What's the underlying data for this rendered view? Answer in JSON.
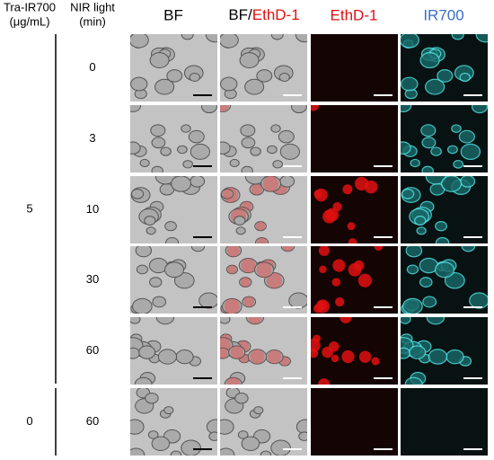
{
  "header": {
    "dose_title": "Tra-IR700",
    "dose_unit": "(μg/mL)",
    "time_title": "NIR light",
    "time_unit": "(min)"
  },
  "columns": [
    {
      "label": "BF"
    },
    {
      "parts": [
        "BF/",
        "EthD-1"
      ]
    },
    {
      "label": "EthD-1"
    },
    {
      "label": "IR700"
    }
  ],
  "groups": [
    {
      "dose": "5",
      "times": [
        "0",
        "3",
        "10",
        "30",
        "60"
      ]
    },
    {
      "dose": "0",
      "times": [
        "60"
      ]
    }
  ]
}
